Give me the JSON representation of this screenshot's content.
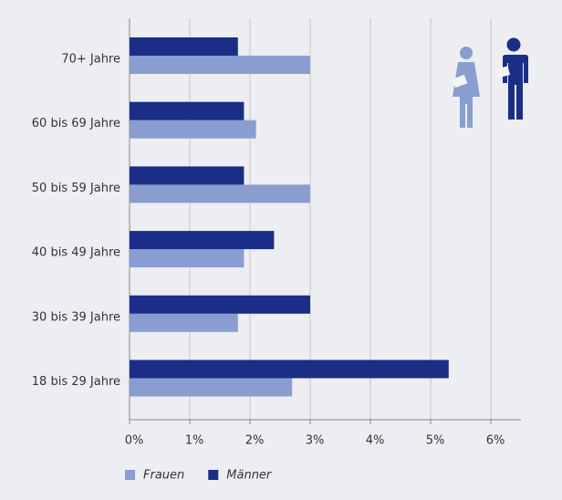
{
  "chart_data": {
    "type": "hbar",
    "categories": [
      "70+ Jahre",
      "60 bis 69 Jahre",
      "50 bis 59 Jahre",
      "40 bis 49 Jahre",
      "30 bis 39 Jahre",
      "18 bis 29 Jahre"
    ],
    "series": [
      {
        "name": "Frauen",
        "color": "#8a9dd1",
        "values": [
          3.0,
          2.1,
          3.0,
          1.9,
          1.8,
          2.7
        ]
      },
      {
        "name": "Männer",
        "color": "#1b2e87",
        "values": [
          1.8,
          1.9,
          1.9,
          2.4,
          3.0,
          5.3
        ]
      }
    ],
    "xlim": [
      0,
      6.5
    ],
    "xticks": [
      {
        "value": 0,
        "label": "0%"
      },
      {
        "value": 1,
        "label": "1%"
      },
      {
        "value": 2,
        "label": "2%"
      },
      {
        "value": 3,
        "label": "3%"
      },
      {
        "value": 4,
        "label": "4%"
      },
      {
        "value": 5,
        "label": "5%"
      },
      {
        "value": 6,
        "label": "6%"
      }
    ],
    "grid": true,
    "legend": "bottom"
  }
}
